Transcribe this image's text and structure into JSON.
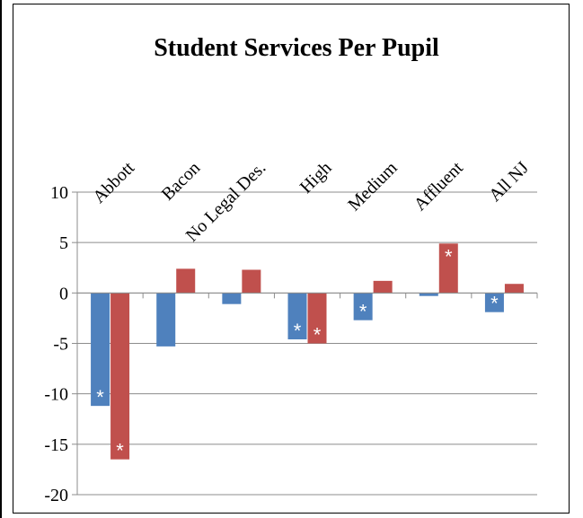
{
  "chart_data": {
    "type": "bar",
    "title": "Student Services Per Pupil",
    "categories": [
      "Abbott",
      "Bacon",
      "No Legal Des.",
      "High",
      "Medium",
      "Affluent",
      "All NJ"
    ],
    "series": [
      {
        "color": "#4F81BD",
        "values": [
          -11.2,
          -5.3,
          -1.1,
          -4.6,
          -2.7,
          -0.3,
          -1.9
        ]
      },
      {
        "color": "#C0504D",
        "values": [
          -16.5,
          2.4,
          2.3,
          -5.0,
          1.2,
          4.9,
          0.9
        ]
      }
    ],
    "significance_marker": "*",
    "significant": [
      [
        true,
        false,
        false,
        true,
        true,
        false,
        true
      ],
      [
        true,
        false,
        false,
        true,
        false,
        true,
        false
      ]
    ],
    "ylim": [
      -20,
      10
    ],
    "yticks": [
      10,
      5,
      0,
      -5,
      -10,
      -15,
      -20
    ],
    "grid": true,
    "xlabel": "",
    "ylabel": ""
  }
}
